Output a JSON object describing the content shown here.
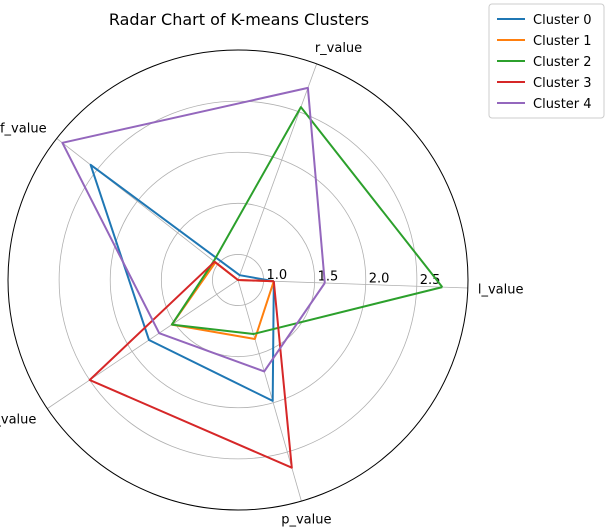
{
  "chart_data": {
    "type": "radar",
    "title": "Radar Chart of K-means Clusters",
    "axes": [
      "l_value",
      "r_value",
      "f_value",
      "m_value",
      "p_value"
    ],
    "radial_ticks": [
      1.0,
      1.5,
      2.0,
      2.5
    ],
    "radial_tick_labels": [
      "1.0",
      "1.5",
      "2.0",
      "2.5"
    ],
    "rlim": [
      0.75,
      3.0
    ],
    "grid": true,
    "legend_position": "upper right outside",
    "series": [
      {
        "name": "Cluster 0",
        "color": "#1f77b4",
        "values": [
          1.1,
          0.8,
          2.58,
          1.8,
          1.98
        ]
      },
      {
        "name": "Cluster 1",
        "color": "#ff7f0e",
        "values": [
          1.1,
          0.75,
          1.03,
          1.53,
          1.35
        ]
      },
      {
        "name": "Cluster 2",
        "color": "#2ca02c",
        "values": [
          2.75,
          2.55,
          1.05,
          1.53,
          1.3
        ]
      },
      {
        "name": "Cluster 3",
        "color": "#d62728",
        "values": [
          1.1,
          0.75,
          1.04,
          2.5,
          2.66
        ]
      },
      {
        "name": "Cluster 4",
        "color": "#9467bd",
        "values": [
          1.6,
          2.75,
          2.93,
          1.68,
          1.68
        ]
      }
    ]
  }
}
